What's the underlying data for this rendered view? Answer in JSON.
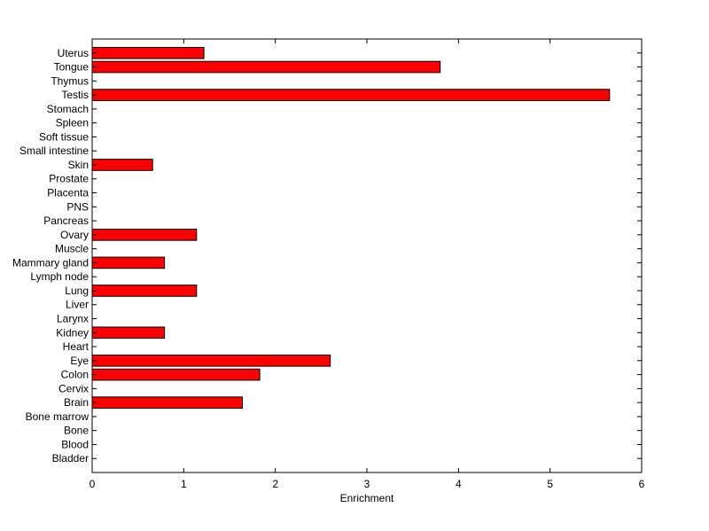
{
  "chart_data": {
    "type": "bar",
    "orientation": "horizontal",
    "title": "",
    "xlabel": "Enrichment",
    "ylabel": "",
    "xlim": [
      0,
      6
    ],
    "xticks": [
      0,
      1,
      2,
      3,
      4,
      5,
      6
    ],
    "grid": false,
    "bar_color": "#ff0000",
    "bar_edge_color": "#000000",
    "categories": [
      "Bladder",
      "Blood",
      "Bone",
      "Bone marrow",
      "Brain",
      "Cervix",
      "Colon",
      "Eye",
      "Heart",
      "Kidney",
      "Larynx",
      "Liver",
      "Lung",
      "Lymph node",
      "Mammary gland",
      "Muscle",
      "Ovary",
      "Pancreas",
      "PNS",
      "Placenta",
      "Prostate",
      "Skin",
      "Small intestine",
      "Soft tissue",
      "Spleen",
      "Stomach",
      "Testis",
      "Thymus",
      "Tongue",
      "Uterus"
    ],
    "values": [
      0,
      0,
      0,
      0,
      1.64,
      0,
      1.83,
      2.6,
      0,
      0.79,
      0,
      0,
      1.14,
      0,
      0.79,
      0,
      1.14,
      0,
      0,
      0,
      0,
      0.66,
      0,
      0,
      0,
      0,
      5.65,
      0,
      3.8,
      1.22
    ]
  }
}
